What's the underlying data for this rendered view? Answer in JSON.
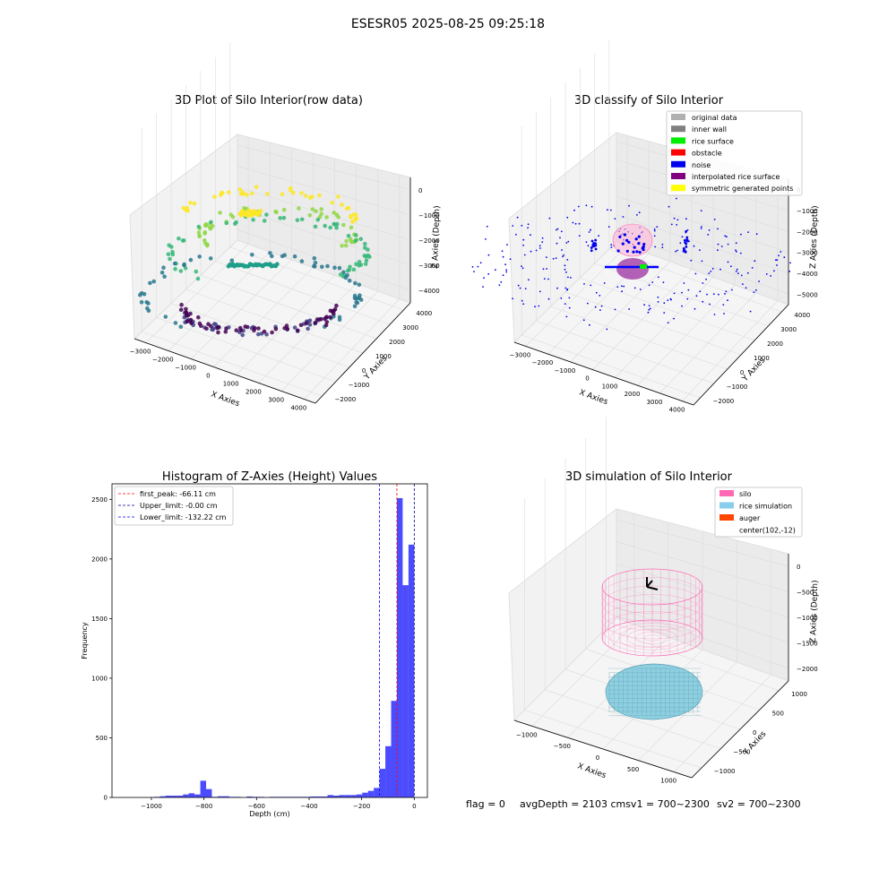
{
  "figure": {
    "suptitle": "ESESR05 2025-08-25 09:25:18"
  },
  "chart_data": [
    {
      "type": "scatter",
      "title": "3D Plot of Silo Interior(row data)",
      "xlabel": "X Axies",
      "ylabel": "Y Axies",
      "zlabel": "Z Axies (Depth)",
      "x_ticks": [
        "−3000",
        "−2000",
        "−1000",
        "0",
        "1000",
        "2000",
        "3000",
        "4000"
      ],
      "y_ticks": [
        "−2000",
        "−1000",
        "0",
        "1000",
        "2000",
        "3000",
        "4000"
      ],
      "z_ticks": [
        "0",
        "−1000",
        "−2000",
        "−3000",
        "−4000"
      ],
      "colormap": "viridis",
      "description_rings": [
        {
          "z": -1000,
          "color": "#fde725"
        },
        {
          "z": -2000,
          "color": "#7ad151"
        },
        {
          "z": -3000,
          "color": "#22a884"
        },
        {
          "z": -3500,
          "color": "#2a788e"
        },
        {
          "z": -4000,
          "color": "#440154"
        }
      ]
    },
    {
      "type": "scatter",
      "title": "3D classify of Silo Interior",
      "xlabel": "X Axies",
      "ylabel": "Y Axies",
      "zlabel": "Z Axies (Depth)",
      "x_ticks": [
        "−3000",
        "−2000",
        "−1000",
        "0",
        "1000",
        "2000",
        "3000",
        "4000"
      ],
      "y_ticks": [
        "−2000",
        "−1000",
        "0",
        "1000",
        "2000",
        "3000",
        "4000"
      ],
      "z_ticks": [
        "0",
        "−1000",
        "−2000",
        "−3000",
        "−4000",
        "−5000"
      ],
      "legend": [
        {
          "label": "original data",
          "color": "#b0b0b0"
        },
        {
          "label": "inner wall",
          "color": "#808080"
        },
        {
          "label": "rice surface",
          "color": "#00ee00"
        },
        {
          "label": "obstacle",
          "color": "#ff0000"
        },
        {
          "label": "noise",
          "color": "#0000ee"
        },
        {
          "label": "interpolated rice surface",
          "color": "#800080"
        },
        {
          "label": "symmetric generated points",
          "color": "#ffff00"
        }
      ],
      "legend_position": "upper right"
    },
    {
      "type": "bar",
      "title": "Histogram of Z-Axies (Height) Values",
      "xlabel": "Depth (cm)",
      "ylabel": "Frequency",
      "xlim": [
        -1150,
        50
      ],
      "ylim": [
        0,
        2630
      ],
      "x_ticks": [
        -1000,
        -800,
        -600,
        -400,
        -200,
        0
      ],
      "x_tick_labels": [
        "−1000",
        "−800",
        "−600",
        "−400",
        "−200",
        "0"
      ],
      "y_ticks": [
        0,
        500,
        1000,
        1500,
        2000,
        2500
      ],
      "y_tick_labels": [
        "0",
        "500",
        "1000",
        "1500",
        "2000",
        "2500"
      ],
      "bar_color": "#0000ff",
      "bin_width": 22,
      "bins": [
        [
          -990,
          5
        ],
        [
          -968,
          10
        ],
        [
          -946,
          15
        ],
        [
          -924,
          15
        ],
        [
          -902,
          15
        ],
        [
          -880,
          25
        ],
        [
          -858,
          35
        ],
        [
          -836,
          25
        ],
        [
          -814,
          140
        ],
        [
          -792,
          70
        ],
        [
          -770,
          5
        ],
        [
          -748,
          10
        ],
        [
          -726,
          10
        ],
        [
          -704,
          5
        ],
        [
          -682,
          5
        ],
        [
          -638,
          8
        ],
        [
          -616,
          5
        ],
        [
          -594,
          5
        ],
        [
          -550,
          5
        ],
        [
          -528,
          5
        ],
        [
          -506,
          5
        ],
        [
          -484,
          5
        ],
        [
          -462,
          5
        ],
        [
          -440,
          5
        ],
        [
          -418,
          5
        ],
        [
          -396,
          8
        ],
        [
          -374,
          8
        ],
        [
          -352,
          8
        ],
        [
          -330,
          20
        ],
        [
          -308,
          15
        ],
        [
          -286,
          20
        ],
        [
          -264,
          20
        ],
        [
          -242,
          20
        ],
        [
          -220,
          25
        ],
        [
          -198,
          40
        ],
        [
          -176,
          55
        ],
        [
          -154,
          80
        ],
        [
          -132,
          240
        ],
        [
          -110,
          430
        ],
        [
          -88,
          810
        ],
        [
          -66,
          2510
        ],
        [
          -44,
          1780
        ],
        [
          -22,
          2120
        ]
      ],
      "vlines": [
        {
          "label": "first_peak: -66.11 cm",
          "x": -66.11,
          "color": "#ff0000"
        },
        {
          "label": "Upper_limit: -0.00 cm",
          "x": 0,
          "color": "#00008b"
        },
        {
          "label": "Lower_limit: -132.22 cm",
          "x": -132.22,
          "color": "#0000ff"
        }
      ],
      "legend_position": "upper left"
    },
    {
      "type": "surface",
      "title": "3D simulation of Silo Interior",
      "xlabel": "X Axies",
      "ylabel": "Y Axies",
      "zlabel": "Z Axies (Depth)",
      "x_ticks": [
        "−1000",
        "−500",
        "0",
        "500",
        "1000"
      ],
      "y_ticks": [
        "−1000",
        "−500",
        "0",
        "500",
        "1000"
      ],
      "z_ticks": [
        "0",
        "−500",
        "−1000",
        "−1500",
        "−2000"
      ],
      "legend": [
        {
          "label": "silo",
          "color": "#ff69b4"
        },
        {
          "label": "rice simulation",
          "color": "#87ceeb"
        },
        {
          "label": "auger",
          "color": "#ff4500"
        },
        {
          "label": "center(102,-12)",
          "color": ""
        }
      ],
      "legend_position": "upper right"
    }
  ],
  "status": {
    "flag": "flag = 0",
    "avg": "avgDepth = 2103 cmsv1 = 700~2300",
    "sv2": "sv2 = 700~2300"
  }
}
